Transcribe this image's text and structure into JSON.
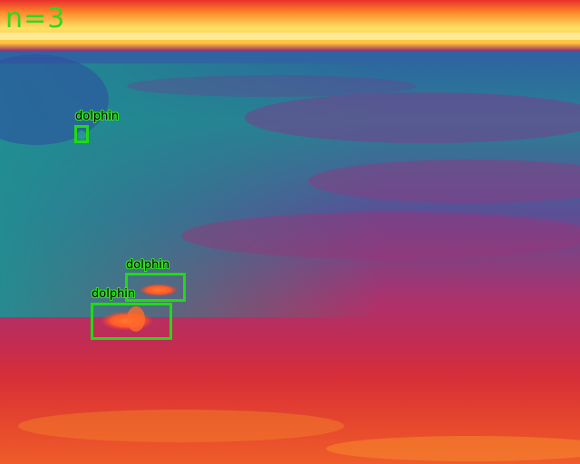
{
  "overlay": {
    "count_text": "n=3",
    "box_color": "#1fdc12"
  },
  "detections": [
    {
      "label": "dolphin"
    },
    {
      "label": "dolphin"
    },
    {
      "label": "dolphin"
    }
  ],
  "palette": {
    "hot_shore": "#ffd84a",
    "water_teal": "#1f8a8e",
    "water_blue": "#2d5aa0",
    "water_purple": "#8a3a86",
    "water_red": "#d42a3a",
    "dolphin_hot": "#ff6a2a"
  }
}
